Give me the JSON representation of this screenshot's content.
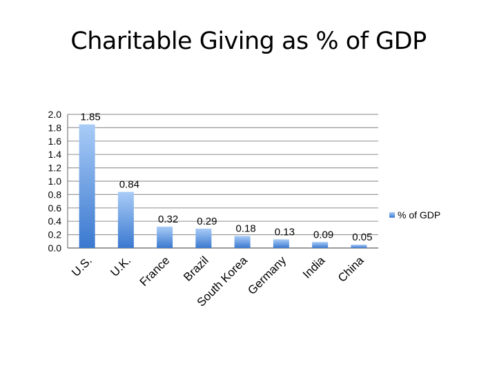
{
  "chart_data": {
    "type": "bar",
    "title": "Charitable Giving as % of GDP",
    "categories": [
      "U.S.",
      "U.K.",
      "France",
      "Brazil",
      "South Korea",
      "Germany",
      "India",
      "China"
    ],
    "series": [
      {
        "name": "% of GDP",
        "values": [
          1.85,
          0.84,
          0.32,
          0.29,
          0.18,
          0.13,
          0.09,
          0.05
        ]
      }
    ],
    "data_labels": [
      "1.85",
      "0.84",
      "0.32",
      "0.29",
      "0.18",
      "0.13",
      "0.09",
      "0.05"
    ],
    "ylim": [
      0,
      2.0
    ],
    "yticks": [
      "0.0",
      "0.2",
      "0.4",
      "0.6",
      "0.8",
      "1.0",
      "1.2",
      "1.4",
      "1.6",
      "1.8",
      "2.0"
    ],
    "ytick_values": [
      0,
      0.2,
      0.4,
      0.6,
      0.8,
      1.0,
      1.2,
      1.4,
      1.6,
      1.8,
      2.0
    ],
    "grid": true,
    "legend": "right",
    "xlabel": "",
    "ylabel": "",
    "colors": {
      "bar_top": "#a9ccf7",
      "bar_bottom": "#3a78cf",
      "grid": "#9a9a9a",
      "axis": "#7a7a7a"
    }
  }
}
